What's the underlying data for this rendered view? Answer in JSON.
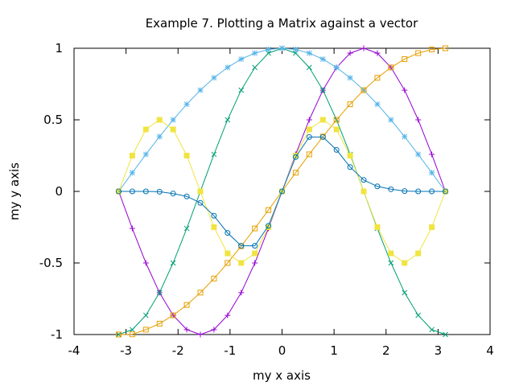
{
  "chart_data": {
    "type": "line",
    "title": "Example 7. Plotting a Matrix against a vector",
    "xlabel": "my x axis",
    "ylabel": "my y axis",
    "xlim": [
      -4,
      4
    ],
    "ylim": [
      -1,
      1
    ],
    "xticks": [
      -4,
      -3,
      -2,
      -1,
      0,
      1,
      2,
      3,
      4
    ],
    "yticks": [
      -1,
      -0.5,
      0,
      0.5,
      1
    ],
    "xtick_labels": [
      "-4",
      "-3",
      "-2",
      "-1",
      "0",
      "1",
      "2",
      "3",
      "4"
    ],
    "ytick_labels": [
      "-1",
      "-0.5",
      "0",
      "0.5",
      "1"
    ],
    "grid": false,
    "legend": "none",
    "x": [
      -3.1416,
      -2.8798,
      -2.618,
      -2.3562,
      -2.0944,
      -1.8326,
      -1.5708,
      -1.309,
      -1.0472,
      -0.7854,
      -0.5236,
      -0.2618,
      0.0,
      0.2618,
      0.5236,
      0.7854,
      1.0472,
      1.309,
      1.5708,
      1.8326,
      2.0944,
      2.3562,
      2.618,
      2.8798,
      3.1416
    ],
    "series": [
      {
        "marker": "plus",
        "color": "#9400d3",
        "values": [
          0.0,
          -0.2588,
          -0.5,
          -0.7071,
          -0.866,
          -0.9659,
          -1.0,
          -0.9659,
          -0.866,
          -0.7071,
          -0.5,
          -0.2588,
          0.0,
          0.2588,
          0.5,
          0.7071,
          0.866,
          0.9659,
          1.0,
          0.9659,
          0.866,
          0.7071,
          0.5,
          0.2588,
          0.0
        ]
      },
      {
        "marker": "cross",
        "color": "#009e73",
        "values": [
          -1.0,
          -0.9659,
          -0.866,
          -0.7071,
          -0.5,
          -0.2588,
          0.0,
          0.2588,
          0.5,
          0.7071,
          0.866,
          0.9659,
          1.0,
          0.9659,
          0.866,
          0.7071,
          0.5,
          0.2588,
          0.0,
          -0.2588,
          -0.5,
          -0.7071,
          -0.866,
          -0.9659,
          -1.0
        ]
      },
      {
        "marker": "star",
        "color": "#56b4e9",
        "values": [
          0.0,
          0.1305,
          0.2588,
          0.3827,
          0.5,
          0.6088,
          0.7071,
          0.7934,
          0.866,
          0.9239,
          0.9659,
          0.9914,
          1.0,
          0.9914,
          0.9659,
          0.9239,
          0.866,
          0.7934,
          0.7071,
          0.6088,
          0.5,
          0.3827,
          0.2588,
          0.1305,
          0.0
        ]
      },
      {
        "marker": "box",
        "color": "#e69f00",
        "values": [
          -1.0,
          -0.9983,
          -0.9659,
          -0.9239,
          -0.866,
          -0.7934,
          -0.7071,
          -0.6088,
          -0.5,
          -0.3827,
          -0.2588,
          -0.1305,
          0.0,
          0.1305,
          0.2588,
          0.3827,
          0.5,
          0.6088,
          0.7071,
          0.7934,
          0.866,
          0.9239,
          0.9659,
          0.9914,
          1.0
        ]
      },
      {
        "marker": "filled-box",
        "color": "#f0e442",
        "values": [
          0.0,
          0.25,
          0.433,
          0.5,
          0.433,
          0.25,
          0.0,
          -0.25,
          -0.433,
          -0.5,
          -0.433,
          -0.25,
          0.0,
          0.25,
          0.433,
          0.5,
          0.433,
          0.25,
          0.0,
          -0.25,
          -0.433,
          -0.5,
          -0.433,
          -0.25,
          0.0
        ]
      },
      {
        "marker": "circle",
        "color": "#0072b2",
        "values": [
          0.0,
          0.0,
          0.0,
          -0.002,
          -0.015,
          -0.035,
          -0.08,
          -0.17,
          -0.29,
          -0.38,
          -0.38,
          -0.24,
          0.0,
          0.24,
          0.38,
          0.38,
          0.29,
          0.17,
          0.08,
          0.035,
          0.015,
          0.002,
          0.0,
          0.0,
          0.0
        ]
      }
    ]
  }
}
